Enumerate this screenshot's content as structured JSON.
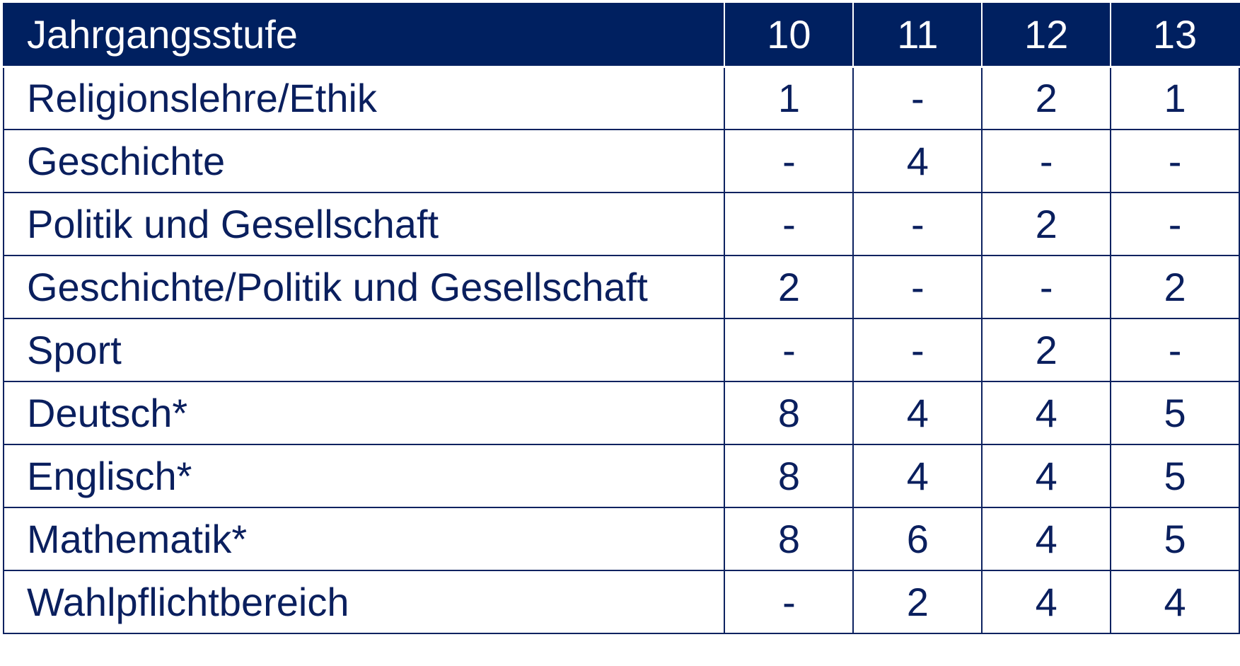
{
  "table": {
    "header": {
      "label": "Jahrgangsstufe",
      "grades": [
        "10",
        "11",
        "12",
        "13"
      ]
    },
    "rows": [
      {
        "subject": "Religionslehre/Ethik",
        "values": [
          "1",
          "-",
          "2",
          "1"
        ]
      },
      {
        "subject": "Geschichte",
        "values": [
          "-",
          "4",
          "-",
          "-"
        ]
      },
      {
        "subject": "Politik und Gesellschaft",
        "values": [
          "-",
          "-",
          "2",
          "-"
        ]
      },
      {
        "subject": "Geschichte/Politik und Gesellschaft",
        "values": [
          "2",
          "-",
          "-",
          "2"
        ]
      },
      {
        "subject": "Sport",
        "values": [
          "-",
          "-",
          "2",
          "-"
        ]
      },
      {
        "subject": "Deutsch*",
        "values": [
          "8",
          "4",
          "4",
          "5"
        ]
      },
      {
        "subject": "Englisch*",
        "values": [
          "8",
          "4",
          "4",
          "5"
        ]
      },
      {
        "subject": "Mathematik*",
        "values": [
          "8",
          "6",
          "4",
          "5"
        ]
      },
      {
        "subject": "Wahlpflichtbereich",
        "values": [
          "-",
          "2",
          "4",
          "4"
        ]
      }
    ]
  },
  "colors": {
    "header_background": "#002060",
    "header_text": "#ffffff",
    "body_text": "#0a1f5e",
    "border": "#0d2260"
  }
}
